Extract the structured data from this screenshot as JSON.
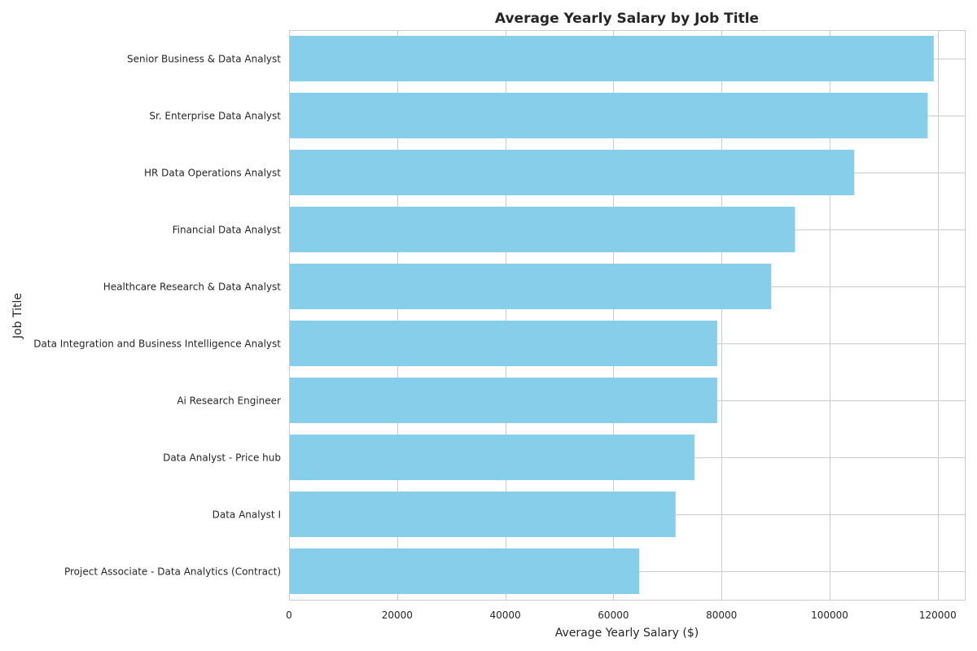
{
  "chart_data": {
    "type": "bar",
    "orientation": "horizontal",
    "title": "Average Yearly Salary by Job Title",
    "xlabel": "Average Yearly Salary ($)",
    "ylabel": "Job Title",
    "xlim": [
      0,
      125000
    ],
    "xticks": [
      0,
      20000,
      40000,
      60000,
      80000,
      100000,
      120000
    ],
    "xtick_labels": [
      "0",
      "20000",
      "40000",
      "60000",
      "80000",
      "100000",
      "120000"
    ],
    "grid": true,
    "bar_color": "#87ceeb",
    "categories": [
      "Senior Business & Data Analyst",
      "Sr. Enterprise Data Analyst",
      "HR Data Operations Analyst",
      "Financial Data Analyst",
      "Healthcare Research & Data Analyst",
      "Data Integration and Business Intelligence Analyst",
      "Ai Research Engineer",
      "Data Analyst - Price hub",
      "Data Analyst I",
      "Project Associate - Data Analytics (Contract)"
    ],
    "values": [
      119250,
      118140,
      104550,
      93600,
      89200,
      79200,
      79200,
      75000,
      71500,
      64800
    ]
  }
}
